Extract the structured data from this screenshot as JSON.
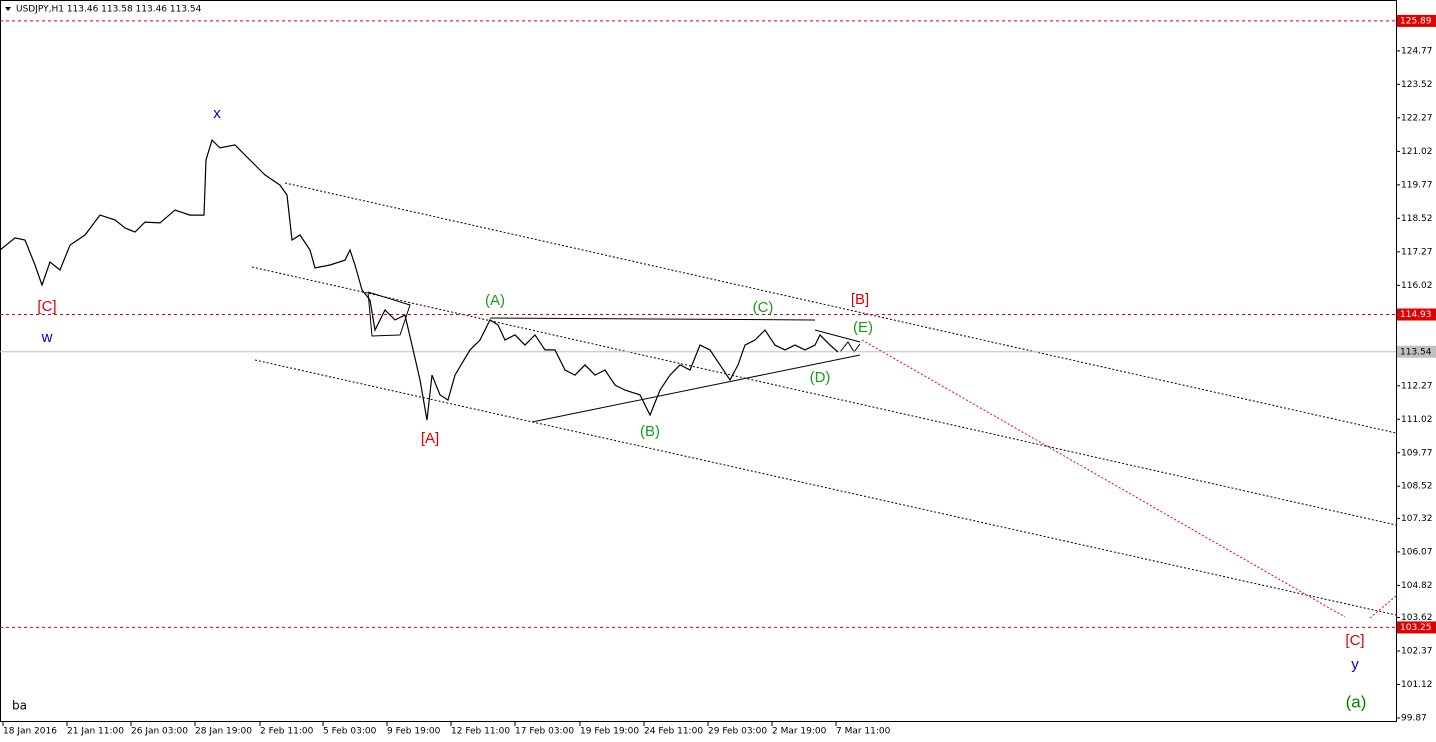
{
  "chart_data": {
    "type": "line",
    "title": "USDJPY,H1  113.46 113.58 113.46 113.54",
    "corner_label": "ba",
    "color": "#000000",
    "ylim": [
      99.72,
      126.67
    ],
    "xlim": [
      0,
      1396
    ],
    "yticks": [
      124.77,
      123.52,
      122.27,
      121.02,
      119.77,
      118.52,
      117.27,
      116.02,
      112.27,
      111.02,
      109.77,
      108.52,
      107.32,
      106.07,
      104.82,
      103.62,
      102.37,
      101.12,
      99.87
    ],
    "xticks": [
      {
        "value": 3,
        "label": "18 Jan 2016"
      },
      {
        "value": 67,
        "label": "21 Jan 11:00"
      },
      {
        "value": 131,
        "label": "26 Jan 03:00"
      },
      {
        "value": 195,
        "label": "28 Jan 19:00"
      },
      {
        "value": 260,
        "label": "2 Feb 11:00"
      },
      {
        "value": 323,
        "label": "5 Feb 03:00"
      },
      {
        "value": 387,
        "label": "9 Feb 19:00"
      },
      {
        "value": 451,
        "label": "12 Feb 11:00"
      },
      {
        "value": 515,
        "label": "17 Feb 03:00"
      },
      {
        "value": 580,
        "label": "19 Feb 19:00"
      },
      {
        "value": 644,
        "label": "24 Feb 11:00"
      },
      {
        "value": 708,
        "label": "29 Feb 03:00"
      },
      {
        "value": 772,
        "label": "2 Mar 19:00"
      },
      {
        "value": 836,
        "label": "7 Mar 11:00"
      }
    ],
    "levels": [
      {
        "value": 125.89,
        "color": "#e00000",
        "style": "dashed"
      },
      {
        "value": 114.93,
        "color": "#e00000",
        "style": "dashed"
      },
      {
        "value": 113.54,
        "color": "#c0c0c0",
        "style": "solid"
      },
      {
        "value": 103.25,
        "color": "#e00000",
        "style": "dashed"
      }
    ],
    "x": [
      0,
      15,
      25,
      35,
      42,
      50,
      60,
      70,
      85,
      100,
      115,
      125,
      135,
      145,
      160,
      175,
      190,
      204,
      206,
      212,
      220,
      235,
      245,
      255,
      265,
      280,
      287,
      292,
      300,
      310,
      315,
      330,
      345,
      350,
      355,
      362,
      370,
      375,
      385,
      395,
      405,
      412,
      420,
      427,
      432,
      440,
      448,
      455,
      470,
      480,
      490,
      498,
      505,
      515,
      525,
      535,
      545,
      555,
      565,
      575,
      585,
      595,
      605,
      615,
      625,
      640,
      650,
      660,
      670,
      680,
      690,
      700,
      710,
      720,
      730,
      738,
      745,
      755,
      765,
      775,
      785,
      795,
      805,
      815,
      820,
      830,
      838
    ],
    "values": [
      117.34,
      117.79,
      117.71,
      116.78,
      116.03,
      116.89,
      116.59,
      117.52,
      117.9,
      118.64,
      118.46,
      118.16,
      118.01,
      118.38,
      118.35,
      118.83,
      118.64,
      118.64,
      120.7,
      121.44,
      121.15,
      121.26,
      120.88,
      120.51,
      120.14,
      119.76,
      119.39,
      117.71,
      117.9,
      117.34,
      116.67,
      116.78,
      116.96,
      117.34,
      116.78,
      115.85,
      115.47,
      114.35,
      115.1,
      114.73,
      114.91,
      113.79,
      112.49,
      110.99,
      112.67,
      111.93,
      111.74,
      112.67,
      113.61,
      113.98,
      114.73,
      114.54,
      113.98,
      114.17,
      113.79,
      114.17,
      113.61,
      113.61,
      112.86,
      112.67,
      113.05,
      112.67,
      112.86,
      112.3,
      112.11,
      111.93,
      111.18,
      112.11,
      112.67,
      113.05,
      112.86,
      113.79,
      113.61,
      113.05,
      112.49,
      113.05,
      113.79,
      113.98,
      114.35,
      113.79,
      113.61,
      113.79,
      113.61,
      113.79,
      114.17,
      113.79,
      113.53
    ],
    "annotations": [
      {
        "text": "x",
        "color": "#0000cc"
      },
      {
        "text": "[C]",
        "color": "#e00000"
      },
      {
        "text": "w",
        "color": "#0000cc"
      },
      {
        "text": "[A]",
        "color": "#e00000"
      },
      {
        "text": "(A)",
        "color": "#1a9a1a"
      },
      {
        "text": "(B)",
        "color": "#1a9a1a"
      },
      {
        "text": "(C)",
        "color": "#1a9a1a"
      },
      {
        "text": "(D)",
        "color": "#1a9a1a"
      },
      {
        "text": "(E)",
        "color": "#1a9a1a"
      },
      {
        "text": "[B]",
        "color": "#e00000"
      },
      {
        "text": "[C]",
        "color": "#e00000"
      },
      {
        "text": "y",
        "color": "#0000cc"
      },
      {
        "text": "(a)",
        "color": "#008000"
      }
    ]
  }
}
